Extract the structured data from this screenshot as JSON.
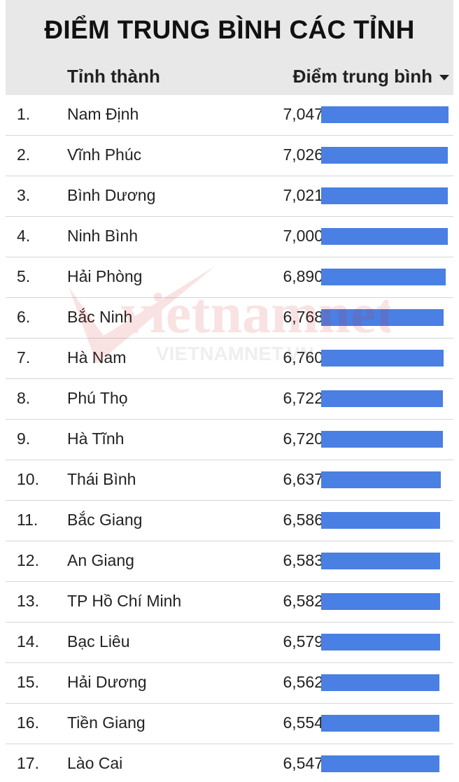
{
  "title": "ĐIỂM TRUNG BÌNH CÁC TỈNH",
  "columns": {
    "province": "Tỉnh thành",
    "score": "Điểm trung bình"
  },
  "sort_icon": "caret-down-icon",
  "colors": {
    "bar": "#4a7fe3",
    "header_bg": "#e8e8e8"
  },
  "watermark": {
    "logo": "vietnamnet",
    "domain": "VIETNAMNET.VN"
  },
  "chart_data": {
    "type": "bar",
    "orientation": "horizontal",
    "title": "ĐIỂM TRUNG BÌNH CÁC TỈNH",
    "ranks": [
      "1.",
      "2.",
      "3.",
      "4.",
      "5.",
      "6.",
      "7.",
      "8.",
      "9.",
      "10.",
      "11.",
      "12.",
      "13.",
      "14.",
      "15.",
      "16.",
      "17."
    ],
    "categories": [
      "Nam Định",
      "Vĩnh Phúc",
      "Bình Dương",
      "Ninh Bình",
      "Hải Phòng",
      "Bắc Ninh",
      "Hà Nam",
      "Phú Thọ",
      "Hà Tĩnh",
      "Thái Bình",
      "Bắc Giang",
      "An Giang",
      "TP Hồ Chí Minh",
      "Bạc Liêu",
      "Hải Dương",
      "Tiền Giang",
      "Lào Cai"
    ],
    "values": [
      7.047,
      7.026,
      7.021,
      7.0,
      6.89,
      6.768,
      6.76,
      6.722,
      6.72,
      6.637,
      6.586,
      6.583,
      6.582,
      6.579,
      6.562,
      6.554,
      6.547
    ],
    "value_labels": [
      "7,047",
      "7,026",
      "7,021",
      "7,000",
      "6,890",
      "6,768",
      "6,760",
      "6,722",
      "6,720",
      "6,637",
      "6,586",
      "6,583",
      "6,582",
      "6,579",
      "6,562",
      "6,554",
      "6,547"
    ],
    "xlim": [
      0,
      7.047
    ],
    "grid": false,
    "legend": "none"
  }
}
